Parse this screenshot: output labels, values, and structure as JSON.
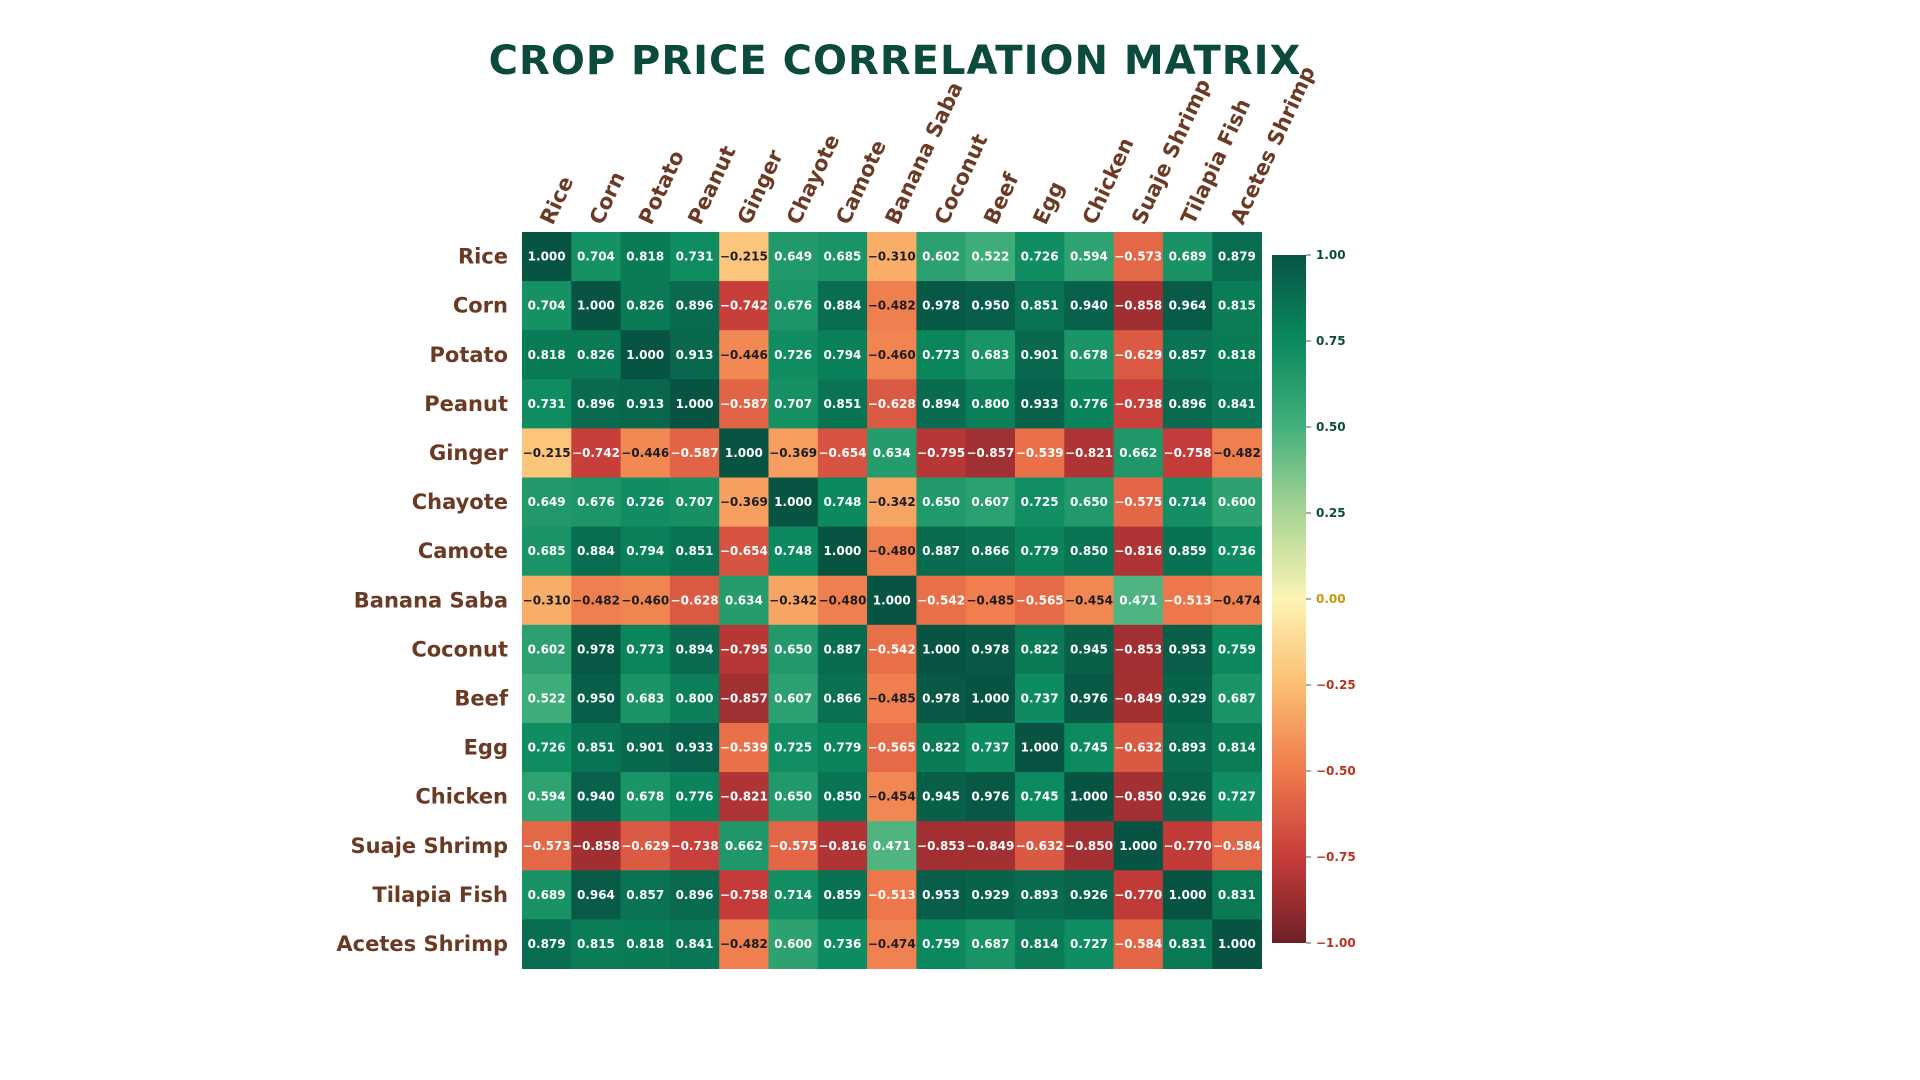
{
  "chart_data": {
    "type": "heatmap",
    "title": "Crop Price Correlation Matrix",
    "rows": [
      "Rice",
      "Corn",
      "Potato",
      "Peanut",
      "Ginger",
      "Chayote",
      "Camote",
      "Banana Saba",
      "Coconut",
      "Beef",
      "Egg",
      "Chicken",
      "Suaje Shrimp",
      "Tilapia Fish",
      "Acetes Shrimp"
    ],
    "columns": [
      "Rice",
      "Corn",
      "Potato",
      "Peanut",
      "Ginger",
      "Chayote",
      "Camote",
      "Banana Saba",
      "Coconut",
      "Beef",
      "Egg",
      "Chicken",
      "Suaje Shrimp",
      "Tilapia Fish",
      "Acetes Shrimp"
    ],
    "values": [
      [
        1.0,
        0.704,
        0.818,
        0.731,
        -0.215,
        0.649,
        0.685,
        -0.31,
        0.602,
        0.522,
        0.726,
        0.594,
        -0.573,
        0.689,
        0.879
      ],
      [
        0.704,
        1.0,
        0.826,
        0.896,
        -0.742,
        0.676,
        0.884,
        -0.482,
        0.978,
        0.95,
        0.851,
        0.94,
        -0.858,
        0.964,
        0.815
      ],
      [
        0.818,
        0.826,
        1.0,
        0.913,
        -0.446,
        0.726,
        0.794,
        -0.46,
        0.773,
        0.683,
        0.901,
        0.678,
        -0.629,
        0.857,
        0.818
      ],
      [
        0.731,
        0.896,
        0.913,
        1.0,
        -0.587,
        0.707,
        0.851,
        -0.628,
        0.894,
        0.8,
        0.933,
        0.776,
        -0.738,
        0.896,
        0.841
      ],
      [
        -0.215,
        -0.742,
        -0.446,
        -0.587,
        1.0,
        -0.369,
        -0.654,
        0.634,
        -0.795,
        -0.857,
        -0.539,
        -0.821,
        0.662,
        -0.758,
        -0.482
      ],
      [
        0.649,
        0.676,
        0.726,
        0.707,
        -0.369,
        1.0,
        0.748,
        -0.342,
        0.65,
        0.607,
        0.725,
        0.65,
        -0.575,
        0.714,
        0.6
      ],
      [
        0.685,
        0.884,
        0.794,
        0.851,
        -0.654,
        0.748,
        1.0,
        -0.48,
        0.887,
        0.866,
        0.779,
        0.85,
        -0.816,
        0.859,
        0.736
      ],
      [
        -0.31,
        -0.482,
        -0.46,
        -0.628,
        0.634,
        -0.342,
        -0.48,
        1.0,
        -0.542,
        -0.485,
        -0.565,
        -0.454,
        0.471,
        -0.513,
        -0.474
      ],
      [
        0.602,
        0.978,
        0.773,
        0.894,
        -0.795,
        0.65,
        0.887,
        -0.542,
        1.0,
        0.978,
        0.822,
        0.945,
        -0.853,
        0.953,
        0.759
      ],
      [
        0.522,
        0.95,
        0.683,
        0.8,
        -0.857,
        0.607,
        0.866,
        -0.485,
        0.978,
        1.0,
        0.737,
        0.976,
        -0.849,
        0.929,
        0.687
      ],
      [
        0.726,
        0.851,
        0.901,
        0.933,
        -0.539,
        0.725,
        0.779,
        -0.565,
        0.822,
        0.737,
        1.0,
        0.745,
        -0.632,
        0.893,
        0.814
      ],
      [
        0.594,
        0.94,
        0.678,
        0.776,
        -0.821,
        0.65,
        0.85,
        -0.454,
        0.945,
        0.976,
        0.745,
        1.0,
        -0.85,
        0.926,
        0.727
      ],
      [
        -0.573,
        -0.858,
        -0.629,
        -0.738,
        0.662,
        -0.575,
        -0.816,
        0.471,
        -0.853,
        -0.849,
        -0.632,
        -0.85,
        1.0,
        -0.77,
        -0.584
      ],
      [
        0.689,
        0.964,
        0.857,
        0.896,
        -0.758,
        0.714,
        0.859,
        -0.513,
        0.953,
        0.929,
        0.893,
        0.926,
        -0.77,
        1.0,
        0.831
      ],
      [
        0.879,
        0.815,
        0.818,
        0.841,
        -0.482,
        0.6,
        0.736,
        -0.474,
        0.759,
        0.687,
        0.814,
        0.727,
        -0.584,
        0.831,
        1.0
      ]
    ],
    "value_range": [
      -1.0,
      1.0
    ],
    "colorbar": {
      "ticks": [
        1.0,
        0.75,
        0.5,
        0.25,
        0.0,
        -0.25,
        -0.5,
        -0.75,
        -1.0
      ],
      "tick_labels": [
        "1.00",
        "0.75",
        "0.50",
        "0.25",
        "0.00",
        "−0.25",
        "−0.50",
        "−0.75",
        "−1.00"
      ],
      "tick_label_colors": [
        "#0b4a3c",
        "#0b4a3c",
        "#0b4a3c",
        "#0b4a3c",
        "#c9960a",
        "#b8321f",
        "#b8321f",
        "#b8321f",
        "#b8321f"
      ],
      "placement": "right"
    },
    "colormap": [
      "#6e1f27",
      "#c73c3a",
      "#ef7a4c",
      "#fbbe72",
      "#fcf4b4",
      "#a9d594",
      "#43b07c",
      "#0b8a5f",
      "#075443"
    ],
    "colors": {
      "title": "#0b4a3c",
      "labels": "#6b3a24"
    }
  }
}
